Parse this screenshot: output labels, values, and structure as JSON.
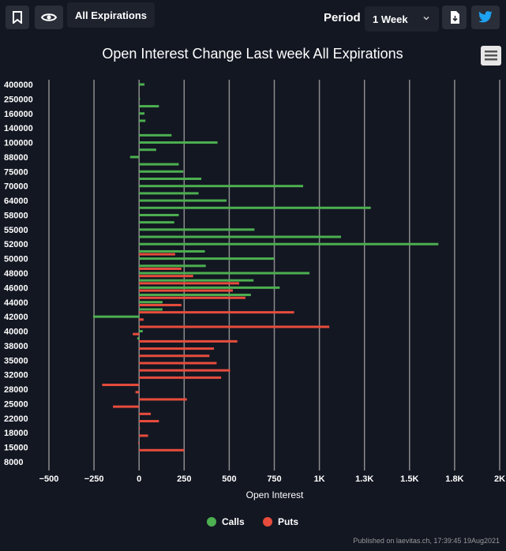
{
  "toolbar": {
    "bookmark_icon": "bookmark-icon",
    "eye_icon": "eye-icon",
    "expirations_label": "All Expirations",
    "period_label": "Period",
    "period_value": "1 Week",
    "download_icon": "download-icon",
    "twitter_icon": "twitter-icon",
    "menu_icon": "hamburger-menu-icon"
  },
  "footer": {
    "published": "Published on laevitas.ch, 17:39:45 19Aug2021"
  },
  "chart_data": {
    "type": "bar",
    "orientation": "horizontal",
    "title": "Open Interest Change Last week All Expirations",
    "xlabel": "Open Interest",
    "xlim": [
      -500,
      2000
    ],
    "xticks": [
      -500,
      -250,
      0,
      250,
      500,
      750,
      1000,
      1250,
      1500,
      1750,
      2000
    ],
    "xtick_labels": [
      "−500",
      "−250",
      "0",
      "250",
      "500",
      "750",
      "1K",
      "1.3K",
      "1.5K",
      "1.8K",
      "2K"
    ],
    "grid": true,
    "legend": "bottom-center",
    "colors": {
      "Calls": "#4caf50",
      "Puts": "#e74c3c"
    },
    "categories": [
      "400000",
      "250000",
      "160000",
      "140000",
      "100000",
      "88000",
      "75000",
      "70000",
      "64000",
      "58000",
      "55000",
      "52000",
      "50000",
      "48000",
      "46000",
      "44000",
      "42000",
      "40000",
      "38000",
      "35000",
      "32000",
      "28000",
      "25000",
      "22000",
      "18000",
      "15000",
      "8000"
    ],
    "series": [
      {
        "name": "Calls",
        "rows": [
          {
            "y": 0,
            "v": 30
          },
          {
            "y": 1,
            "v": 5
          },
          {
            "y": 1.5,
            "v": 110
          },
          {
            "y": 2,
            "v": 30
          },
          {
            "y": 2.5,
            "v": 35
          },
          {
            "y": 3,
            "v": 0
          },
          {
            "y": 3.5,
            "v": 180
          },
          {
            "y": 4,
            "v": 435
          },
          {
            "y": 4.5,
            "v": 95
          },
          {
            "y": 5,
            "v": -50
          },
          {
            "y": 5.5,
            "v": 220
          },
          {
            "y": 6,
            "v": 245
          },
          {
            "y": 6.5,
            "v": 345
          },
          {
            "y": 7,
            "v": 910
          },
          {
            "y": 7.5,
            "v": 330
          },
          {
            "y": 8,
            "v": 485
          },
          {
            "y": 8.5,
            "v": 1285
          },
          {
            "y": 9,
            "v": 220
          },
          {
            "y": 9.5,
            "v": 195
          },
          {
            "y": 10,
            "v": 640
          },
          {
            "y": 10.5,
            "v": 1120
          },
          {
            "y": 11,
            "v": 1660
          },
          {
            "y": 11.5,
            "v": 365
          },
          {
            "y": 12,
            "v": 750
          },
          {
            "y": 12.5,
            "v": 370
          },
          {
            "y": 13,
            "v": 945
          },
          {
            "y": 13.5,
            "v": 635
          },
          {
            "y": 14,
            "v": 780
          },
          {
            "y": 14.5,
            "v": 620
          },
          {
            "y": 15,
            "v": 130
          },
          {
            "y": 15.5,
            "v": 130
          },
          {
            "y": 16,
            "v": -255
          },
          {
            "y": 17,
            "v": 20
          },
          {
            "y": 17.5,
            "v": -10
          }
        ]
      },
      {
        "name": "Puts",
        "rows": [
          {
            "y": 11.7,
            "v": 200
          },
          {
            "y": 12.7,
            "v": 235
          },
          {
            "y": 13.2,
            "v": 300
          },
          {
            "y": 13.7,
            "v": 555
          },
          {
            "y": 14.2,
            "v": 520
          },
          {
            "y": 14.7,
            "v": 590
          },
          {
            "y": 15.2,
            "v": 235
          },
          {
            "y": 15.7,
            "v": 860
          },
          {
            "y": 16.2,
            "v": 25
          },
          {
            "y": 16.7,
            "v": 1055
          },
          {
            "y": 17.2,
            "v": -35
          },
          {
            "y": 17.7,
            "v": 545
          },
          {
            "y": 18.2,
            "v": 415
          },
          {
            "y": 18.7,
            "v": 390
          },
          {
            "y": 19.2,
            "v": 430
          },
          {
            "y": 19.7,
            "v": 505
          },
          {
            "y": 20.2,
            "v": 455
          },
          {
            "y": 20.7,
            "v": -205
          },
          {
            "y": 21.2,
            "v": -20
          },
          {
            "y": 21.7,
            "v": 265
          },
          {
            "y": 22.2,
            "v": -145
          },
          {
            "y": 22.7,
            "v": 65
          },
          {
            "y": 23.2,
            "v": 110
          },
          {
            "y": 23.7,
            "v": 5
          },
          {
            "y": 24.2,
            "v": 50
          },
          {
            "y": 24.7,
            "v": -5
          },
          {
            "y": 25.2,
            "v": 250
          }
        ]
      }
    ]
  }
}
